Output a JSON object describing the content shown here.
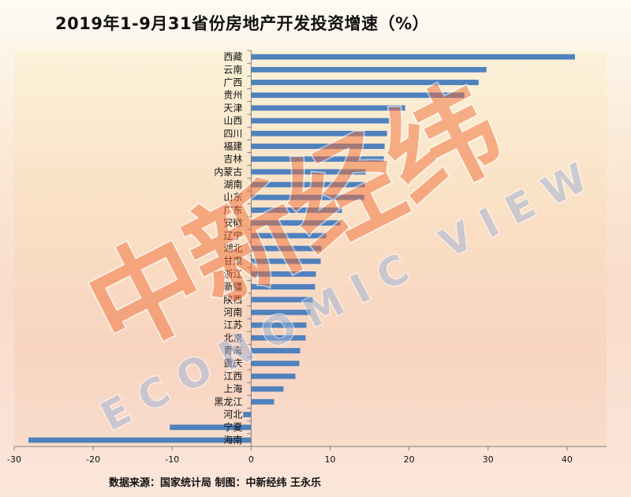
{
  "title": "2019年1-9月31省份房地产开发投资增速（%）",
  "source_note": "数据来源：国家统计局 制图：中新经纬 王永乐",
  "watermark": {
    "cn": "中新经纬",
    "en": "ECONOMIC VIEW"
  },
  "colors": {
    "bar": "#4f81bd",
    "axis": "#7f7f7f",
    "text": "#111111"
  },
  "chart_data": {
    "type": "bar",
    "orientation": "horizontal",
    "title": "2019年1-9月31省份房地产开发投资增速（%）",
    "xlim": [
      -30,
      45
    ],
    "xticks": [
      -30,
      -20,
      -10,
      0,
      10,
      20,
      30,
      40
    ],
    "grid": false,
    "categories": [
      "西藏",
      "云南",
      "广西",
      "贵州",
      "天津",
      "山西",
      "四川",
      "福建",
      "吉林",
      "内蒙古",
      "湖南",
      "山东",
      "广东",
      "安徽",
      "辽宁",
      "湖北",
      "甘肃",
      "浙江",
      "新疆",
      "陕西",
      "河南",
      "江苏",
      "北京",
      "青海",
      "重庆",
      "江西",
      "上海",
      "黑龙江",
      "河北",
      "宁夏",
      "海南"
    ],
    "values": [
      41.0,
      29.8,
      28.8,
      27.0,
      19.5,
      17.5,
      17.2,
      16.9,
      16.8,
      14.5,
      14.4,
      14.3,
      11.5,
      11.3,
      9.5,
      8.9,
      8.8,
      8.2,
      8.1,
      7.8,
      7.5,
      7.0,
      6.9,
      6.2,
      6.1,
      5.6,
      4.1,
      2.9,
      -1.0,
      -10.3,
      -28.2
    ]
  }
}
